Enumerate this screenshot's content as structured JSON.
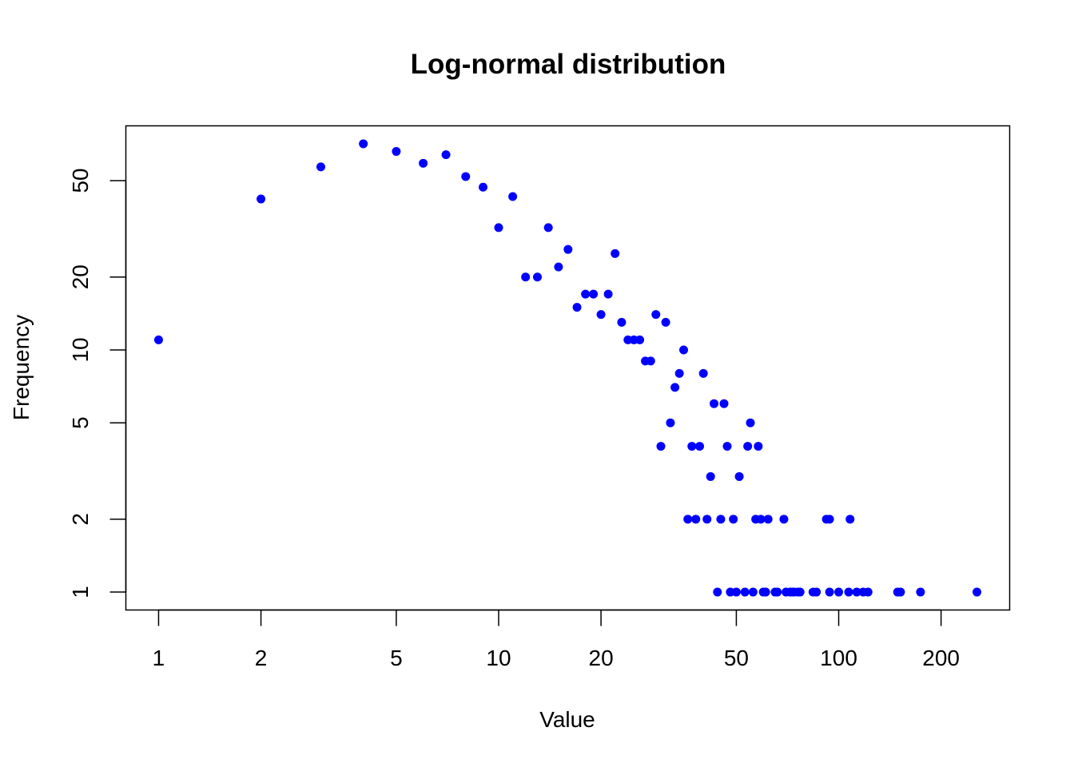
{
  "chart_data": {
    "type": "scatter",
    "title": "Log-normal distribution",
    "xlabel": "Value",
    "ylabel": "Frequency",
    "xscale": "log",
    "yscale": "log",
    "xlim": [
      1,
      255
    ],
    "ylim": [
      1,
      71
    ],
    "grid": false,
    "point_color": "#0000ff",
    "x_ticks": [
      1,
      2,
      5,
      10,
      20,
      50,
      100,
      200
    ],
    "x_tick_labels": [
      "1",
      "2",
      "5",
      "10",
      "20",
      "50",
      "100",
      "200"
    ],
    "y_ticks": [
      1,
      2,
      5,
      10,
      20,
      50
    ],
    "y_tick_labels": [
      "1",
      "2",
      "5",
      "10",
      "20",
      "50"
    ],
    "points": [
      [
        1,
        11
      ],
      [
        2,
        42
      ],
      [
        3,
        57
      ],
      [
        4,
        71
      ],
      [
        5,
        66
      ],
      [
        6,
        59
      ],
      [
        7,
        64
      ],
      [
        8,
        52
      ],
      [
        9,
        47
      ],
      [
        10,
        32
      ],
      [
        11,
        43
      ],
      [
        12,
        20
      ],
      [
        13,
        20
      ],
      [
        14,
        32
      ],
      [
        15,
        22
      ],
      [
        16,
        26
      ],
      [
        17,
        15
      ],
      [
        18,
        17
      ],
      [
        19,
        17
      ],
      [
        20,
        14
      ],
      [
        21,
        17
      ],
      [
        22,
        25
      ],
      [
        23,
        13
      ],
      [
        24,
        11
      ],
      [
        25,
        11
      ],
      [
        26,
        11
      ],
      [
        27,
        9
      ],
      [
        28,
        9
      ],
      [
        29,
        14
      ],
      [
        30,
        4
      ],
      [
        31,
        13
      ],
      [
        32,
        5
      ],
      [
        33,
        7
      ],
      [
        34,
        8
      ],
      [
        35,
        10
      ],
      [
        36,
        2
      ],
      [
        37,
        4
      ],
      [
        38,
        2
      ],
      [
        39,
        4
      ],
      [
        40,
        8
      ],
      [
        41,
        2
      ],
      [
        42,
        3
      ],
      [
        43,
        6
      ],
      [
        44,
        1
      ],
      [
        45,
        2
      ],
      [
        46,
        6
      ],
      [
        47,
        4
      ],
      [
        48,
        1
      ],
      [
        49,
        2
      ],
      [
        50,
        1
      ],
      [
        51,
        3
      ],
      [
        53,
        1
      ],
      [
        54,
        4
      ],
      [
        55,
        5
      ],
      [
        56,
        1
      ],
      [
        57,
        2
      ],
      [
        58,
        4
      ],
      [
        59,
        2
      ],
      [
        60,
        1
      ],
      [
        61,
        1
      ],
      [
        62,
        2
      ],
      [
        65,
        1
      ],
      [
        66,
        1
      ],
      [
        69,
        2
      ],
      [
        70,
        1
      ],
      [
        72,
        1
      ],
      [
        73,
        1
      ],
      [
        74,
        1
      ],
      [
        76,
        1
      ],
      [
        77,
        1
      ],
      [
        84,
        1
      ],
      [
        86,
        1
      ],
      [
        92,
        2
      ],
      [
        94,
        2
      ],
      [
        94,
        1
      ],
      [
        100,
        1
      ],
      [
        107,
        1
      ],
      [
        108,
        2
      ],
      [
        113,
        1
      ],
      [
        118,
        1
      ],
      [
        122,
        1
      ],
      [
        149,
        1
      ],
      [
        152,
        1
      ],
      [
        174,
        1
      ],
      [
        255,
        1
      ]
    ]
  }
}
